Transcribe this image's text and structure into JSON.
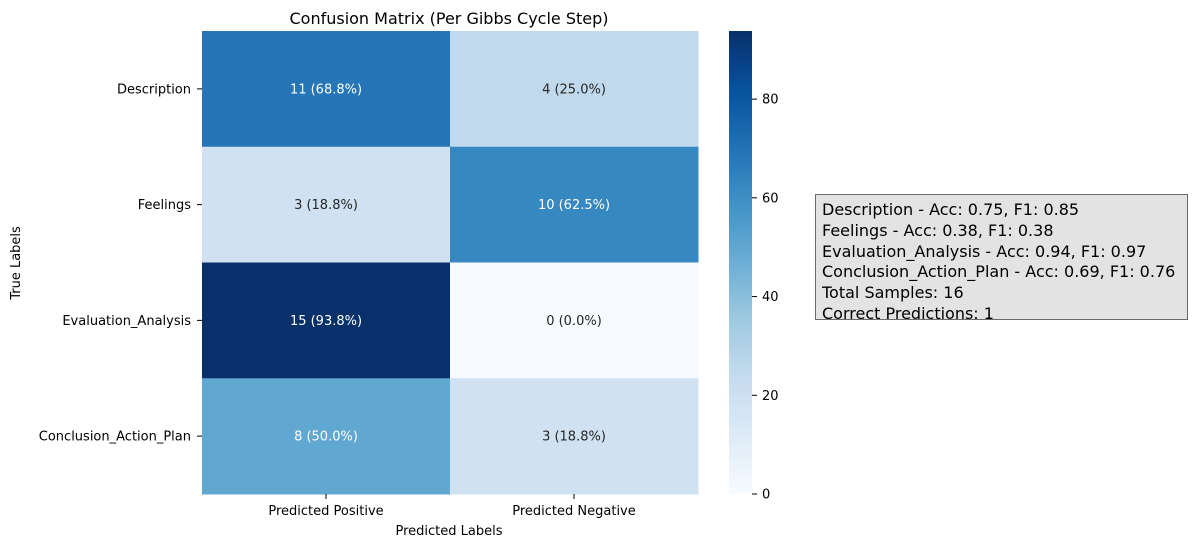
{
  "chart_data": {
    "type": "heatmap",
    "title": "Confusion Matrix (Per Gibbs Cycle Step)",
    "xlabel": "Predicted Labels",
    "ylabel": "True Labels",
    "x_categories": [
      "Predicted Positive",
      "Predicted Negative"
    ],
    "y_categories": [
      "Description",
      "Feelings",
      "Evaluation_Analysis",
      "Conclusion_Action_Plan"
    ],
    "values": [
      [
        68.8,
        25.0
      ],
      [
        18.8,
        62.5
      ],
      [
        93.8,
        0.0
      ],
      [
        50.0,
        18.8
      ]
    ],
    "annotations": [
      [
        "11 (68.8%)",
        "4 (25.0%)"
      ],
      [
        "3 (18.8%)",
        "10 (62.5%)"
      ],
      [
        "15 (93.8%)",
        "0 (0.0%)"
      ],
      [
        "8 (50.0%)",
        "3 (18.8%)"
      ]
    ],
    "colormap": "Blues",
    "colorbar": {
      "range": [
        0,
        93.8
      ],
      "ticks": [
        0,
        20,
        40,
        60,
        80
      ]
    },
    "grid": false
  },
  "metrics": [
    "Description - Acc: 0.75, F1: 0.85",
    "Feelings - Acc: 0.38, F1: 0.38",
    "Evaluation_Analysis - Acc: 0.94, F1: 0.97",
    "Conclusion_Action_Plan - Acc: 0.69, F1: 0.76",
    "Total Samples: 16",
    "Correct Predictions: 1"
  ]
}
